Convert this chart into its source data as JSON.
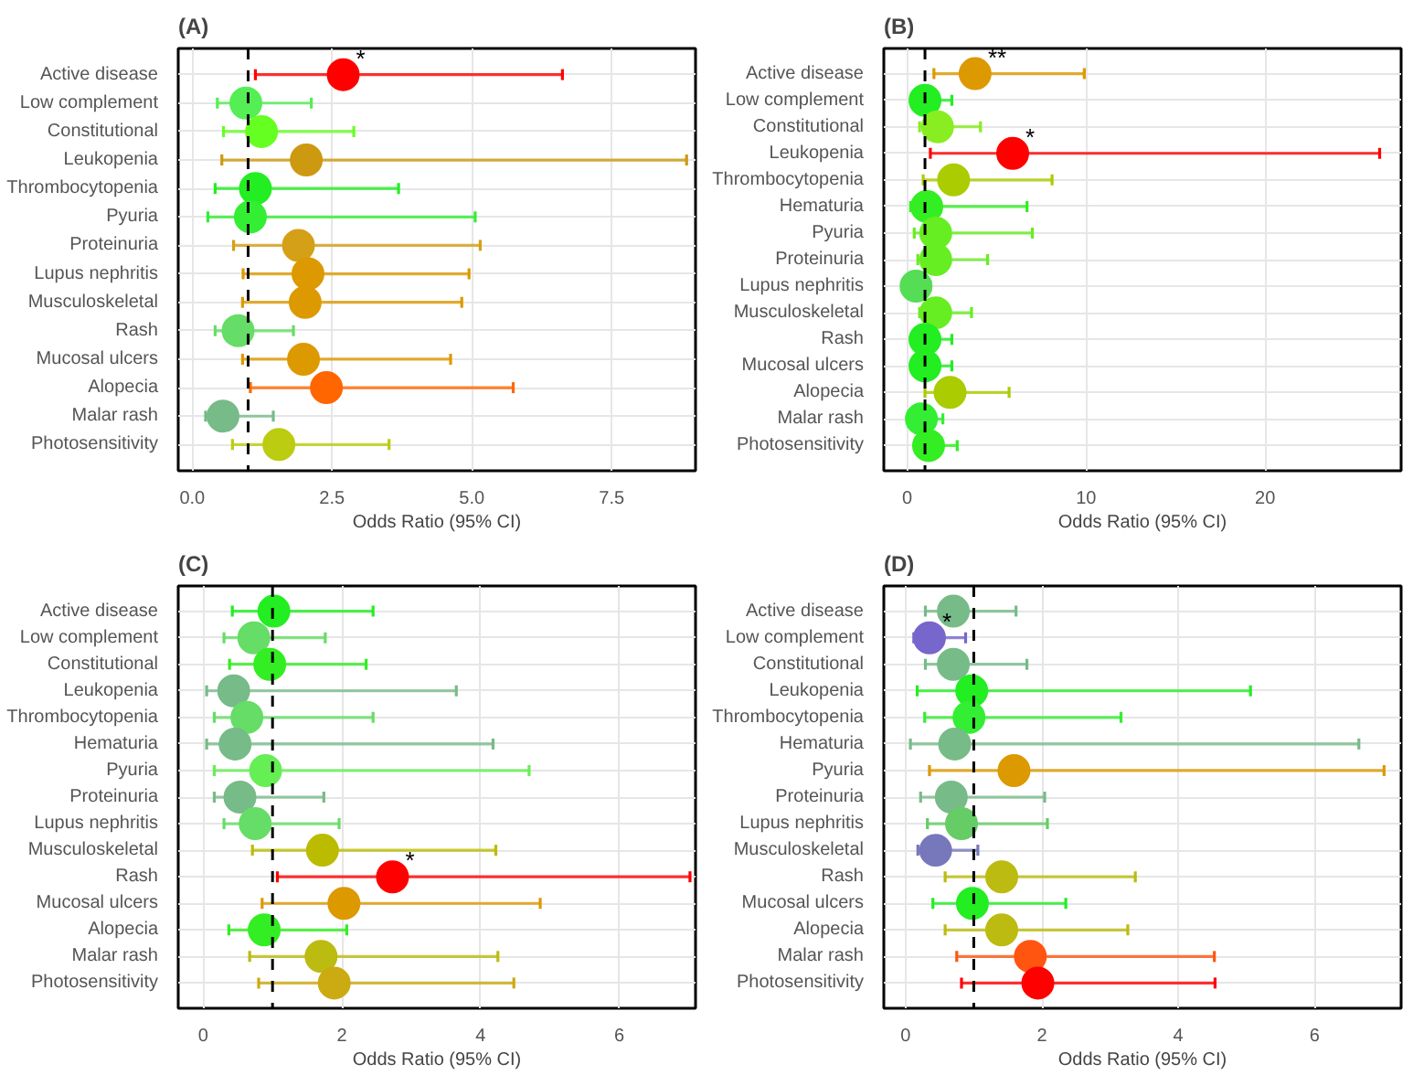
{
  "chart_data": [
    {
      "type": "scatter",
      "orientation": "horizontal",
      "title": "(A)",
      "xlabel": "Odds Ratio (95% CI)",
      "grid": true,
      "marker": "circle",
      "categories": [
        "Active disease",
        "Low complement",
        "Constitutional",
        "Leukopenia",
        "Thrombocytopenia",
        "Pyuria",
        "Proteinuria",
        "Lupus nephritis",
        "Musculoskeletal",
        "Rash",
        "Mucosal ulcers",
        "Alopecia",
        "Malar rash",
        "Photosensitivity"
      ],
      "values": [
        2.7,
        0.96,
        1.24,
        2.04,
        1.13,
        1.04,
        1.9,
        2.07,
        2.02,
        0.82,
        1.99,
        2.4,
        0.55,
        1.55
      ],
      "errors": [
        [
          1.13,
          6.62
        ],
        [
          0.45,
          2.13
        ],
        [
          0.56,
          2.89
        ],
        [
          0.53,
          8.84
        ],
        [
          0.41,
          3.69
        ],
        [
          0.28,
          5.06
        ],
        [
          0.74,
          5.15
        ],
        [
          0.91,
          4.95
        ],
        [
          0.9,
          4.82
        ],
        [
          0.41,
          1.81
        ],
        [
          0.9,
          4.62
        ],
        [
          1.04,
          5.74
        ],
        [
          0.24,
          1.45
        ],
        [
          0.72,
          3.52
        ]
      ],
      "colors": [
        "#ff0000",
        "#55ee55",
        "#66ff22",
        "#cc9911",
        "#22ee22",
        "#33ee33",
        "#d4a017",
        "#dd9900",
        "#dd9900",
        "#66dd66",
        "#dd9900",
        "#ff6600",
        "#77bb88",
        "#bbcc11"
      ],
      "xlim": [
        -0.25,
        9.0
      ],
      "xticks": [
        {
          "value": 0,
          "label": "0.0"
        },
        {
          "value": 2.5,
          "label": "2.5"
        },
        {
          "value": 5,
          "label": "5.0"
        },
        {
          "value": 7.5,
          "label": "7.5"
        }
      ],
      "ref_lines": [
        {
          "axis": "x",
          "value": 1,
          "line_style": "dashed",
          "color": "#000000"
        }
      ],
      "annotations": [
        {
          "text": "*",
          "x": 2.7,
          "y": "Active disease"
        }
      ]
    },
    {
      "type": "scatter",
      "orientation": "horizontal",
      "title": "(B)",
      "xlabel": "Odds Ratio (95% CI)",
      "grid": true,
      "marker": "circle",
      "categories": [
        "Active disease",
        "Low complement",
        "Constitutional",
        "Leukopenia",
        "Thrombocytopenia",
        "Hematuria",
        "Pyuria",
        "Proteinuria",
        "Lupus nephritis",
        "Musculoskeletal",
        "Rash",
        "Mucosal ulcers",
        "Alopecia",
        "Malar rash",
        "Photosensitivity"
      ],
      "values": [
        3.8,
        1.0,
        1.7,
        5.9,
        2.6,
        1.1,
        1.6,
        1.6,
        0.5,
        1.6,
        1.0,
        1.0,
        2.4,
        0.8,
        1.2
      ],
      "errors": [
        [
          1.5,
          9.9
        ],
        [
          1.0,
          2.5
        ],
        [
          0.7,
          4.1
        ],
        [
          1.3,
          26.4
        ],
        [
          0.9,
          8.1
        ],
        [
          0.2,
          6.7
        ],
        [
          0.4,
          7.0
        ],
        [
          0.6,
          4.5
        ],
        [
          0.5,
          1.3
        ],
        [
          0.7,
          3.6
        ],
        [
          1.0,
          2.5
        ],
        [
          1.0,
          2.5
        ],
        [
          1.0,
          5.7
        ],
        [
          0.8,
          2.0
        ],
        [
          0.7,
          2.8
        ]
      ],
      "colors": [
        "#dd9900",
        "#22ee22",
        "#88ee22",
        "#ff0000",
        "#aacc00",
        "#33ee22",
        "#66ee22",
        "#66ee22",
        "#55dd55",
        "#66ee22",
        "#22ee22",
        "#22ee22",
        "#aacc00",
        "#33ee33",
        "#33ee22"
      ],
      "xlim": [
        -1.3,
        27.6
      ],
      "xticks": [
        0,
        10,
        20
      ],
      "ref_lines": [
        {
          "axis": "x",
          "value": 1,
          "line_style": "dashed",
          "color": "#000000"
        }
      ],
      "annotations": [
        {
          "text": "**",
          "x": 3.8,
          "y": "Active disease"
        },
        {
          "text": "*",
          "x": 5.9,
          "y": "Leukopenia"
        }
      ]
    },
    {
      "type": "scatter",
      "orientation": "horizontal",
      "title": "(C)",
      "xlabel": "Odds Ratio (95% CI)",
      "grid": true,
      "marker": "circle",
      "categories": [
        "Active disease",
        "Low complement",
        "Constitutional",
        "Leukopenia",
        "Thrombocytopenia",
        "Hematuria",
        "Pyuria",
        "Proteinuria",
        "Lupus nephritis",
        "Musculoskeletal",
        "Rash",
        "Mucosal ulcers",
        "Alopecia",
        "Malar rash",
        "Photosensitivity"
      ],
      "values": [
        1.02,
        0.73,
        0.96,
        0.44,
        0.63,
        0.46,
        0.9,
        0.53,
        0.75,
        1.72,
        2.73,
        2.03,
        0.88,
        1.7,
        1.89
      ],
      "errors": [
        [
          0.42,
          2.45
        ],
        [
          0.3,
          1.76
        ],
        [
          0.38,
          2.35
        ],
        [
          0.05,
          3.65
        ],
        [
          0.16,
          2.45
        ],
        [
          0.05,
          4.18
        ],
        [
          0.16,
          4.7
        ],
        [
          0.16,
          1.74
        ],
        [
          0.3,
          1.96
        ],
        [
          0.71,
          4.22
        ],
        [
          1.07,
          7.02
        ],
        [
          0.85,
          4.86
        ],
        [
          0.37,
          2.07
        ],
        [
          0.67,
          4.25
        ],
        [
          0.8,
          4.48
        ]
      ],
      "colors": [
        "#22ee22",
        "#66dd66",
        "#33ee22",
        "#77bb88",
        "#66dd66",
        "#77bb88",
        "#66ee55",
        "#77bb88",
        "#66dd66",
        "#bbbb00",
        "#ff0000",
        "#dd9900",
        "#33ee22",
        "#bbbb11",
        "#ccaa11"
      ],
      "xlim": [
        -0.36,
        7.1
      ],
      "xticks": [
        0,
        2,
        4,
        6
      ],
      "ref_lines": [
        {
          "axis": "x",
          "value": 1,
          "line_style": "dashed",
          "color": "#000000"
        }
      ],
      "annotations": [
        {
          "text": "*",
          "x": 2.73,
          "y": "Rash"
        }
      ]
    },
    {
      "type": "scatter",
      "orientation": "horizontal",
      "title": "(D)",
      "xlabel": "Odds Ratio (95% CI)",
      "grid": true,
      "marker": "circle",
      "categories": [
        "Active disease",
        "Low complement",
        "Constitutional",
        "Leukopenia",
        "Thrombocytopenia",
        "Hematuria",
        "Pyuria",
        "Proteinuria",
        "Lupus nephritis",
        "Musculoskeletal",
        "Rash",
        "Mucosal ulcers",
        "Alopecia",
        "Malar rash",
        "Photosensitivity"
      ],
      "values": [
        0.7,
        0.35,
        0.7,
        0.97,
        0.93,
        0.72,
        1.59,
        0.67,
        0.82,
        0.44,
        1.41,
        0.98,
        1.41,
        1.83,
        1.94
      ],
      "errors": [
        [
          0.29,
          1.62
        ],
        [
          0.12,
          0.88
        ],
        [
          0.29,
          1.78
        ],
        [
          0.17,
          5.06
        ],
        [
          0.28,
          3.16
        ],
        [
          0.07,
          6.65
        ],
        [
          0.35,
          7.02
        ],
        [
          0.22,
          2.04
        ],
        [
          0.32,
          2.08
        ],
        [
          0.18,
          1.06
        ],
        [
          0.58,
          3.37
        ],
        [
          0.4,
          2.35
        ],
        [
          0.58,
          3.26
        ],
        [
          0.75,
          4.53
        ],
        [
          0.82,
          4.54
        ]
      ],
      "colors": [
        "#77bb88",
        "#7766cc",
        "#77bb88",
        "#22ee22",
        "#33ee33",
        "#77bb88",
        "#dd9900",
        "#77bb88",
        "#66cc66",
        "#7777bb",
        "#bbbb11",
        "#22ee22",
        "#bbbb11",
        "#ff5511",
        "#ff0000"
      ],
      "xlim": [
        -0.32,
        7.27
      ],
      "xticks": [
        0,
        2,
        4,
        6
      ],
      "ref_lines": [
        {
          "axis": "x",
          "value": 1,
          "line_style": "dashed",
          "color": "#000000"
        }
      ],
      "annotations": [
        {
          "text": "*",
          "x": 0.35,
          "y": "Low complement"
        }
      ]
    }
  ]
}
